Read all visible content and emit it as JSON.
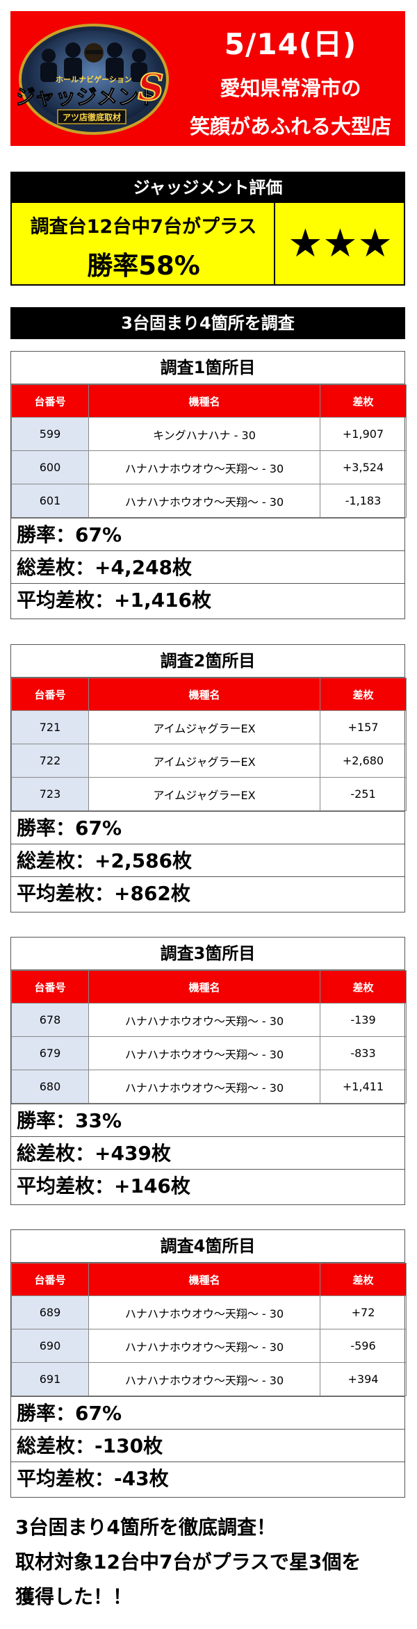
{
  "banner": {
    "logo_small_text": "ホールナビゲーション",
    "logo_main_text": "ジャッジメント",
    "logo_s_letter": "S",
    "logo_sub_text": "アツ店徹底取材",
    "date": "5/14(日)",
    "line1": "愛知県常滑市の",
    "line2": "笑顔があふれる大型店",
    "background_color": "#f40000"
  },
  "evaluation": {
    "title": "ジャッジメント評価",
    "summary_line1": "調査台12台中7台がプラス",
    "summary_line2": "勝率58%",
    "stars": "★★★",
    "star_count": 3,
    "highlight_color": "#ffff00"
  },
  "section_header": "3台固まり4箇所を調査",
  "table_headers": {
    "number": "台番号",
    "model": "機種名",
    "diff": "差枚"
  },
  "surveys": [
    {
      "title": "調査1箇所目",
      "rows": [
        {
          "number": "599",
          "model": "キングハナハナ - 30",
          "diff": "+1,907"
        },
        {
          "number": "600",
          "model": "ハナハナホウオウ〜天翔〜 - 30",
          "diff": "+3,524"
        },
        {
          "number": "601",
          "model": "ハナハナホウオウ〜天翔〜 - 30",
          "diff": "-1,183"
        }
      ],
      "win_rate": "勝率：67%",
      "total_diff": "総差枚：+4,248枚",
      "avg_diff": "平均差枚：+1,416枚"
    },
    {
      "title": "調査2箇所目",
      "rows": [
        {
          "number": "721",
          "model": "アイムジャグラーEX",
          "diff": "+157"
        },
        {
          "number": "722",
          "model": "アイムジャグラーEX",
          "diff": "+2,680"
        },
        {
          "number": "723",
          "model": "アイムジャグラーEX",
          "diff": "-251"
        }
      ],
      "win_rate": "勝率：67%",
      "total_diff": "総差枚：+2,586枚",
      "avg_diff": "平均差枚：+862枚"
    },
    {
      "title": "調査3箇所目",
      "rows": [
        {
          "number": "678",
          "model": "ハナハナホウオウ〜天翔〜 - 30",
          "diff": "-139"
        },
        {
          "number": "679",
          "model": "ハナハナホウオウ〜天翔〜 - 30",
          "diff": "-833"
        },
        {
          "number": "680",
          "model": "ハナハナホウオウ〜天翔〜 - 30",
          "diff": "+1,411"
        }
      ],
      "win_rate": "勝率：33%",
      "total_diff": "総差枚：+439枚",
      "avg_diff": "平均差枚：+146枚"
    },
    {
      "title": "調査4箇所目",
      "rows": [
        {
          "number": "689",
          "model": "ハナハナホウオウ〜天翔〜 - 30",
          "diff": "+72"
        },
        {
          "number": "690",
          "model": "ハナハナホウオウ〜天翔〜 - 30",
          "diff": "-596"
        },
        {
          "number": "691",
          "model": "ハナハナホウオウ〜天翔〜 - 30",
          "diff": "+394"
        }
      ],
      "win_rate": "勝率：67%",
      "total_diff": "総差枚：-130枚",
      "avg_diff": "平均差枚：-43枚"
    }
  ],
  "footer": {
    "line1": "3台固まり4箇所を徹底調査！",
    "line2": "取材対象12台中7台がプラスで星3個を",
    "line3": "獲得した！！"
  }
}
